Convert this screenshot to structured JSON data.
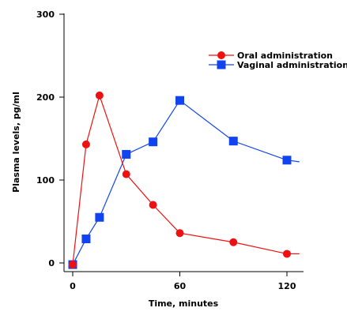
{
  "chart_data": {
    "type": "line",
    "xlabel": "Time, minutes",
    "ylabel": "Plasma levels, pg/ml",
    "xlim": [
      -6,
      128
    ],
    "ylim": [
      -10,
      300
    ],
    "x_ticks": [
      0,
      60,
      120
    ],
    "y_ticks": [
      0,
      100,
      200,
      300
    ],
    "legend_position": "top-right",
    "series": [
      {
        "name": "Oral administration",
        "color": "#ee1111",
        "marker": "circle",
        "x": [
          0,
          7.5,
          15,
          30,
          45,
          60,
          90,
          120
        ],
        "y": [
          -2,
          143,
          202,
          107,
          70,
          36,
          25,
          11
        ],
        "line_end": [
          127,
          11
        ]
      },
      {
        "name": "Vaginal administration",
        "color": "#1144ee",
        "marker": "square",
        "x": [
          0,
          7.5,
          15,
          30,
          45,
          60,
          90,
          120
        ],
        "y": [
          -2,
          29,
          55,
          131,
          146,
          196,
          147,
          124
        ],
        "line_end": [
          127,
          122
        ]
      }
    ]
  }
}
